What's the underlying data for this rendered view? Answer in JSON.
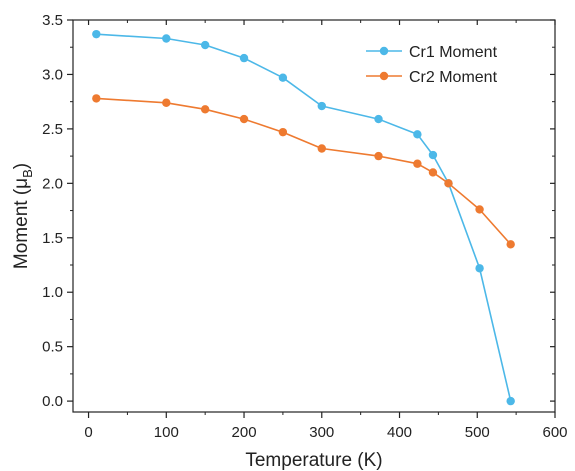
{
  "chart_data": {
    "type": "line",
    "xlabel": "Temperature (K)",
    "ylabel_main": "Moment (μ",
    "ylabel_sub": "B",
    "ylabel_close": ")",
    "xlim": [
      -20,
      600
    ],
    "ylim": [
      -0.1,
      3.5
    ],
    "xticks": [
      0,
      100,
      200,
      300,
      400,
      500,
      600
    ],
    "yticks": [
      0.0,
      0.5,
      1.0,
      1.5,
      2.0,
      2.5,
      3.0,
      3.5
    ],
    "xtick_labels": [
      "0",
      "100",
      "200",
      "300",
      "400",
      "500",
      "600"
    ],
    "ytick_labels": [
      "0.0",
      "0.5",
      "1.0",
      "1.5",
      "2.0",
      "2.5",
      "3.0",
      "3.5"
    ],
    "grid": false,
    "legend_position": "top-right",
    "series": [
      {
        "name": "Cr1 Moment",
        "color": "#4cb8e8",
        "x": [
          10,
          100,
          150,
          200,
          250,
          300,
          373,
          423,
          443,
          463,
          503,
          543
        ],
        "y": [
          3.37,
          3.33,
          3.27,
          3.15,
          2.97,
          2.71,
          2.59,
          2.45,
          2.26,
          2.0,
          1.22,
          0.0
        ]
      },
      {
        "name": "Cr2 Moment",
        "color": "#ee7a30",
        "x": [
          10,
          100,
          150,
          200,
          250,
          300,
          373,
          423,
          443,
          463,
          503,
          543
        ],
        "y": [
          2.78,
          2.74,
          2.68,
          2.59,
          2.47,
          2.32,
          2.25,
          2.18,
          2.1,
          2.0,
          1.76,
          1.44
        ]
      }
    ]
  }
}
